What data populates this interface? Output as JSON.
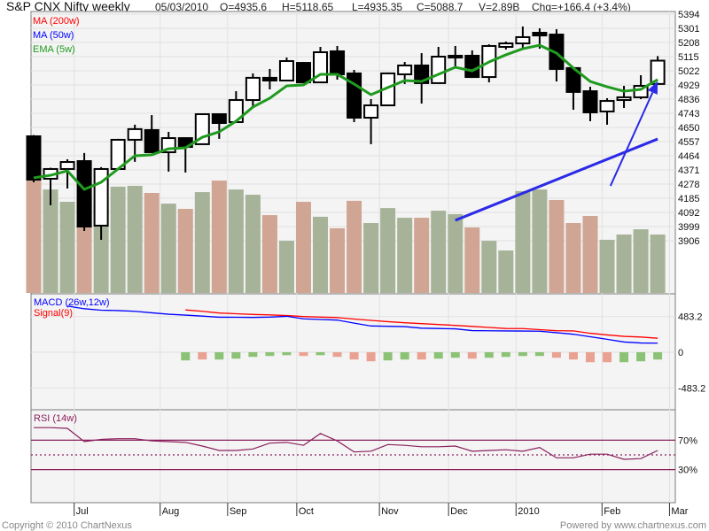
{
  "header": {
    "title": "S&P CNX Nifty weekly",
    "date": "05/03/2010",
    "open": "O=4935.6",
    "high": "H=5118.65",
    "low": "L=4935.35",
    "close": "C=5088.7",
    "volume": "V=2.89B",
    "change": "Chg=+166.4 (+3.4%)"
  },
  "footer": {
    "copyright": "Copyright © 2010 ChartNexus",
    "powered_by": "Powered by www.chartnexus.com"
  },
  "x_axis": {
    "months": [
      {
        "label": "Jul",
        "at": 2.4
      },
      {
        "label": "Aug",
        "at": 7.5
      },
      {
        "label": "Sep",
        "at": 11.5
      },
      {
        "label": "Oct",
        "at": 15.6
      },
      {
        "label": "Nov",
        "at": 20.5
      },
      {
        "label": "Dec",
        "at": 24.6
      },
      {
        "label": "2010",
        "at": 28.6
      },
      {
        "label": "Feb",
        "at": 33.7
      },
      {
        "label": "Mar",
        "at": 37.7
      }
    ]
  },
  "colors": {
    "up_volume": "#a6b398",
    "down_volume": "#d0a593",
    "ema": "#1f9a1f",
    "ma200": "#ff0000",
    "ma50": "#0000ff",
    "macd": "#0000ff",
    "signal": "#ff0000",
    "hist_up": "#8cc276",
    "hist_down": "#e9a292",
    "rsi": "#8b1f5c",
    "annotation": "#2a2ae8"
  },
  "chart_data": [
    {
      "type": "candlestick",
      "title": "S&P CNX Nifty weekly",
      "legend": [
        "MA (200w)",
        "MA (50w)",
        "EMA (5w)"
      ],
      "ylim": [
        3563,
        5429
      ],
      "yticks": [
        5394,
        5301,
        5208,
        5115,
        5022,
        4929,
        4836,
        4743,
        4650,
        4557,
        4464,
        4371,
        4278,
        4185,
        4092,
        3999,
        3906
      ],
      "grid": true,
      "ohlc": [
        [
          4592,
          4600,
          4290,
          4307
        ],
        [
          4313,
          4385,
          4139,
          4377
        ],
        [
          4377,
          4441,
          4249,
          4423
        ],
        [
          4429,
          4482,
          3970,
          3999
        ],
        [
          4005,
          4389,
          3912,
          4377
        ],
        [
          4377,
          4575,
          4377,
          4569
        ],
        [
          4569,
          4668,
          4424,
          4639
        ],
        [
          4633,
          4731,
          4487,
          4487
        ],
        [
          4487,
          4621,
          4360,
          4580
        ],
        [
          4580,
          4580,
          4354,
          4522
        ],
        [
          4540,
          4740,
          4540,
          4737
        ],
        [
          4737,
          4737,
          4575,
          4679
        ],
        [
          4685,
          4888,
          4685,
          4830
        ],
        [
          4830,
          5005,
          4790,
          4976
        ],
        [
          4976,
          5034,
          4900,
          4958
        ],
        [
          4958,
          5109,
          4958,
          5086
        ],
        [
          5074,
          5080,
          4940,
          4946
        ],
        [
          4946,
          5179,
          4946,
          5144
        ],
        [
          5150,
          5185,
          4964,
          4999
        ],
        [
          5005,
          5028,
          4685,
          4714
        ],
        [
          4714,
          4836,
          4540,
          4795
        ],
        [
          4795,
          5011,
          4795,
          5005
        ],
        [
          4999,
          5080,
          4935,
          5057
        ],
        [
          5057,
          5138,
          4807,
          4941
        ],
        [
          4941,
          5179,
          4941,
          5115
        ],
        [
          5121,
          5185,
          5051,
          5109
        ],
        [
          5121,
          5156,
          4975,
          4981
        ],
        [
          4981,
          5196,
          4946,
          5185
        ],
        [
          5179,
          5214,
          5162,
          5202
        ],
        [
          5202,
          5313,
          5167,
          5243
        ],
        [
          5272,
          5301,
          5167,
          5254
        ],
        [
          5260,
          5295,
          4952,
          5034
        ],
        [
          5040,
          5040,
          4766,
          4883
        ],
        [
          4888,
          4917,
          4691,
          4749
        ],
        [
          4755,
          4842,
          4668,
          4824
        ],
        [
          4830,
          4923,
          4778,
          4848
        ],
        [
          4848,
          4993,
          4836,
          4923
        ],
        [
          4935.6,
          5118.65,
          4935.35,
          5088.7
        ]
      ],
      "volume_billions": [
        5.6,
        5.12,
        4.51,
        4.64,
        4.42,
        5.26,
        5.3,
        4.95,
        4.42,
        4.16,
        4.99,
        5.56,
        5.12,
        4.86,
        3.85,
        2.58,
        4.51,
        3.77,
        3.2,
        4.56,
        3.46,
        4.2,
        3.72,
        3.72,
        4.07,
        3.9,
        3.24,
        2.58,
        2.1,
        5.04,
        5.12,
        4.6,
        3.46,
        3.81,
        2.63,
        2.89,
        3.15,
        2.89
      ],
      "volume_up": [
        false,
        true,
        true,
        false,
        true,
        true,
        true,
        false,
        true,
        false,
        true,
        false,
        true,
        true,
        false,
        true,
        false,
        true,
        false,
        false,
        true,
        true,
        true,
        false,
        true,
        true,
        false,
        true,
        true,
        true,
        true,
        false,
        false,
        false,
        true,
        true,
        true,
        true
      ],
      "series": [
        {
          "name": "EMA (5w)",
          "values": [
            4319,
            4336,
            4365,
            4243,
            4290,
            4377,
            4464,
            4470,
            4510,
            4516,
            4586,
            4621,
            4691,
            4784,
            4842,
            4923,
            4929,
            4999,
            4999,
            4935,
            4865,
            4912,
            4958,
            4952,
            4999,
            5045,
            5022,
            5080,
            5127,
            5167,
            5190,
            5138,
            5040,
            4952,
            4917,
            4888,
            4900,
            4964
          ]
        }
      ],
      "annotations": [
        {
          "type": "trendline",
          "from": [
            25,
            4040
          ],
          "to": [
            37,
            4574
          ]
        },
        {
          "type": "arrow",
          "from": [
            34.2,
            4266
          ],
          "to": [
            37,
            4954
          ]
        }
      ]
    },
    {
      "type": "line",
      "title": "MACD (26w,12w)",
      "legend": [
        "MACD (26w,12w)",
        "Signal(9)"
      ],
      "ylim": [
        -880,
        1120
      ],
      "yticks": [
        "483.2",
        "0",
        "-483.2"
      ],
      "ytick_values": [
        483.2,
        0,
        -483.2
      ],
      "macd_start": 2,
      "macd": [
        625,
        590,
        570,
        565,
        555,
        535,
        515,
        503,
        490,
        475,
        474,
        472,
        476,
        487,
        453,
        444,
        436,
        394,
        356,
        352,
        347,
        326,
        322,
        317,
        293,
        291,
        289,
        287,
        285,
        265,
        244,
        210,
        176,
        139,
        125,
        123
      ],
      "signal_start": 9,
      "signal": [
        574,
        555,
        532,
        522,
        512,
        506,
        497,
        484,
        476,
        470,
        450,
        432,
        415,
        400,
        388,
        376,
        364,
        350,
        336,
        322,
        321,
        306,
        292,
        289,
        257,
        235,
        215,
        206,
        190
      ],
      "histogram_start": 9,
      "histogram": [
        -111,
        -99,
        -99,
        -87,
        -63,
        -51,
        -40,
        -51,
        -40,
        -63,
        -99,
        -123,
        -111,
        -99,
        -99,
        -87,
        -75,
        -87,
        -75,
        -63,
        -51,
        -51,
        -75,
        -99,
        -135,
        -135,
        -135,
        -123,
        -99
      ],
      "histogram_up": [
        true,
        false,
        true,
        true,
        true,
        true,
        true,
        false,
        true,
        false,
        false,
        false,
        true,
        true,
        false,
        true,
        true,
        false,
        true,
        true,
        true,
        true,
        false,
        false,
        false,
        false,
        true,
        true,
        true
      ]
    },
    {
      "type": "line",
      "title": "RSI (14w)",
      "ylim": [
        -15,
        115
      ],
      "yticks": [
        "70%",
        "30%"
      ],
      "levels": [
        70,
        50,
        30
      ],
      "values": [
        87,
        87,
        86,
        68,
        71,
        72,
        72,
        69,
        68,
        67,
        62,
        56,
        56,
        58,
        66,
        67,
        63,
        79,
        69,
        54,
        55,
        64,
        63,
        61,
        61,
        62,
        55,
        56,
        57,
        55,
        60,
        46,
        46,
        51,
        51,
        44,
        45,
        56
      ]
    }
  ]
}
